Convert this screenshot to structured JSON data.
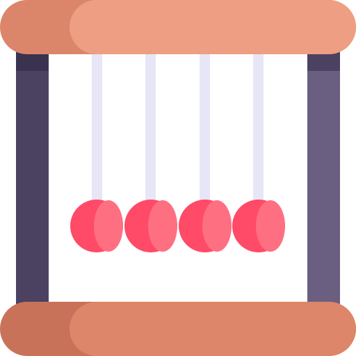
{
  "icon": {
    "name": "newtons-cradle-icon",
    "ball_count": 4
  },
  "colors": {
    "background": "#ffffff",
    "bar_top_light": "#ee9e82",
    "bar_top_dark": "#db866b",
    "bar_bottom_light": "#dd8669",
    "bar_bottom_dark": "#c9725a",
    "post_left": "#4b4262",
    "post_right": "#6a5f80",
    "post_shadow": "#3a3350",
    "string": "#e6e6f7",
    "ball_dark": "#ff4a68",
    "ball_light": "#ff6f82"
  }
}
